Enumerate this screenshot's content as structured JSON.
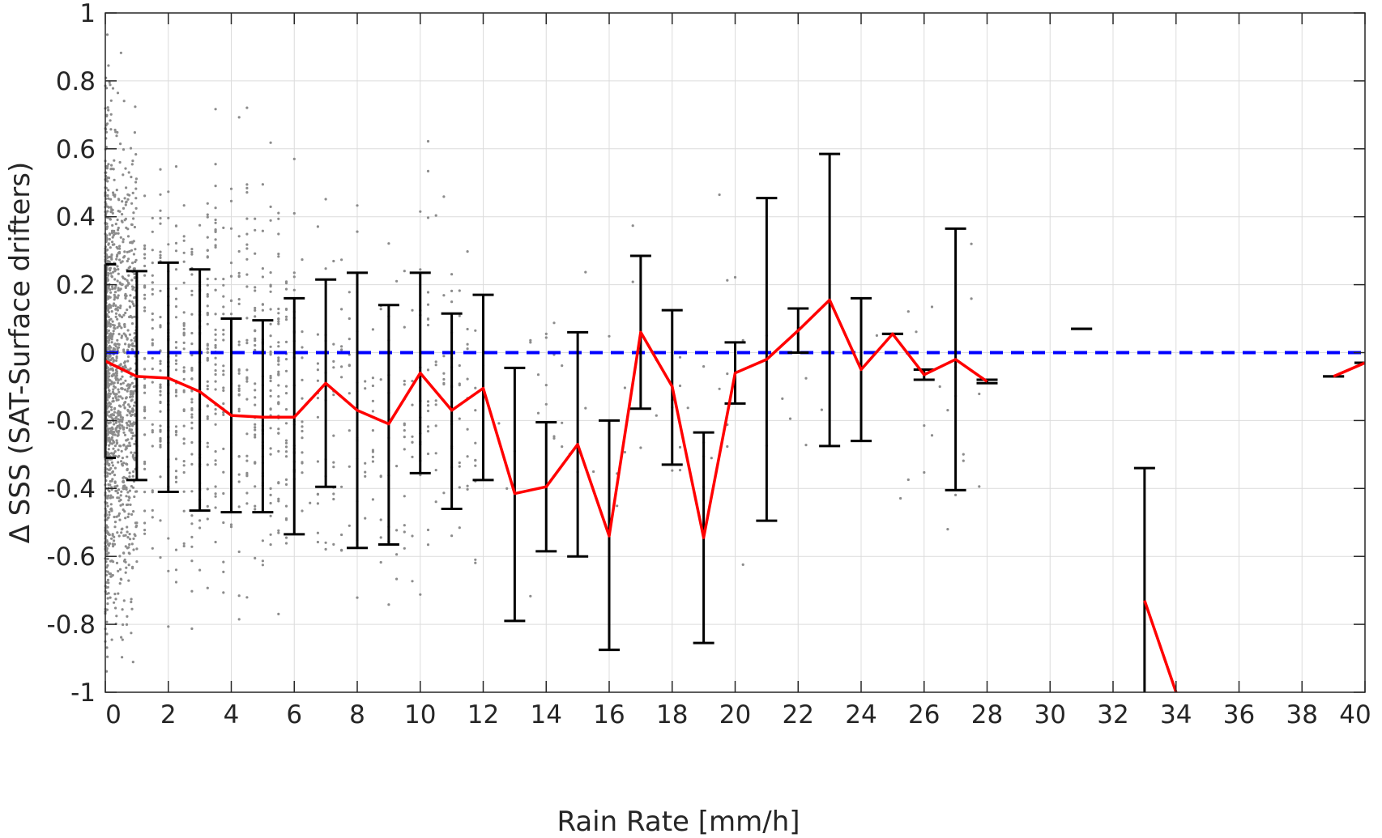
{
  "chart_data": {
    "type": "scatter",
    "xlabel": "Rain Rate [mm/h]",
    "ylabel": "Δ SSS (SAT-Surface drifters)",
    "xlim": [
      0,
      40
    ],
    "ylim": [
      -1,
      1
    ],
    "grid": true,
    "x_ticks": [
      "0",
      "2",
      "4",
      "6",
      "8",
      "10",
      "12",
      "14",
      "16",
      "18",
      "20",
      "22",
      "24",
      "26",
      "28",
      "30",
      "32",
      "34",
      "36",
      "38",
      "40"
    ],
    "y_ticks": [
      "-1",
      "-0.8",
      "-0.6",
      "-0.4",
      "-0.2",
      "0",
      "0.2",
      "0.4",
      "0.6",
      "0.8",
      "1"
    ],
    "colors": {
      "scatter": "#8c8c8c",
      "mean_line": "#ff0000",
      "error_bars": "#000000",
      "zero_line": "#0000ff",
      "grid": "#dcdcdc",
      "axes": "#262626"
    },
    "reference_line": {
      "y": 0,
      "style": "dashed"
    },
    "series": [
      {
        "type": "errorbar",
        "points": [
          {
            "x": 0,
            "y": -0.025,
            "lo": -0.31,
            "hi": 0.26
          },
          {
            "x": 1,
            "y": -0.07,
            "lo": -0.375,
            "hi": 0.24
          },
          {
            "x": 2,
            "y": -0.075,
            "lo": -0.41,
            "hi": 0.265
          },
          {
            "x": 3,
            "y": -0.115,
            "lo": -0.465,
            "hi": 0.245
          },
          {
            "x": 4,
            "y": -0.185,
            "lo": -0.47,
            "hi": 0.1
          },
          {
            "x": 5,
            "y": -0.19,
            "lo": -0.47,
            "hi": 0.095
          },
          {
            "x": 6,
            "y": -0.19,
            "lo": -0.535,
            "hi": 0.16
          },
          {
            "x": 7,
            "y": -0.09,
            "lo": -0.395,
            "hi": 0.215
          },
          {
            "x": 8,
            "y": -0.17,
            "lo": -0.575,
            "hi": 0.235
          },
          {
            "x": 9,
            "y": -0.21,
            "lo": -0.565,
            "hi": 0.14
          },
          {
            "x": 10,
            "y": -0.06,
            "lo": -0.355,
            "hi": 0.235
          },
          {
            "x": 11,
            "y": -0.17,
            "lo": -0.46,
            "hi": 0.115
          },
          {
            "x": 12,
            "y": -0.105,
            "lo": -0.375,
            "hi": 0.17
          },
          {
            "x": 13,
            "y": -0.415,
            "lo": -0.79,
            "hi": -0.045
          },
          {
            "x": 14,
            "y": -0.395,
            "lo": -0.585,
            "hi": -0.205
          },
          {
            "x": 15,
            "y": -0.27,
            "lo": -0.6,
            "hi": 0.06
          },
          {
            "x": 16,
            "y": -0.54,
            "lo": -0.875,
            "hi": -0.2
          },
          {
            "x": 17,
            "y": 0.06,
            "lo": -0.165,
            "hi": 0.285
          },
          {
            "x": 18,
            "y": -0.1,
            "lo": -0.33,
            "hi": 0.125
          },
          {
            "x": 19,
            "y": -0.545,
            "lo": -0.855,
            "hi": -0.235
          },
          {
            "x": 20,
            "y": -0.06,
            "lo": -0.15,
            "hi": 0.03
          },
          {
            "x": 21,
            "y": -0.02,
            "lo": -0.495,
            "hi": 0.455
          },
          {
            "x": 22,
            "y": 0.065,
            "lo": 0.0,
            "hi": 0.13
          },
          {
            "x": 23,
            "y": 0.155,
            "lo": -0.275,
            "hi": 0.585
          },
          {
            "x": 24,
            "y": -0.05,
            "lo": -0.26,
            "hi": 0.16
          },
          {
            "x": 25,
            "y": 0.055,
            "lo": 0.055,
            "hi": 0.055
          },
          {
            "x": 26,
            "y": -0.065,
            "lo": -0.08,
            "hi": -0.05
          },
          {
            "x": 27,
            "y": -0.02,
            "lo": -0.405,
            "hi": 0.365
          },
          {
            "x": 28,
            "y": -0.085,
            "lo": -0.09,
            "hi": -0.08
          },
          {
            "x": 31,
            "y": 0.07,
            "lo": 0.07,
            "hi": 0.07
          },
          {
            "x": 33,
            "y": -0.73,
            "lo": -1.0,
            "hi": -0.34
          },
          {
            "x": 34,
            "y": -1.0,
            "lo": -1.0,
            "hi": -1.0
          },
          {
            "x": 39,
            "y": -0.07,
            "lo": -0.07,
            "hi": -0.07
          },
          {
            "x": 40,
            "y": -0.03,
            "lo": -0.03,
            "hi": -0.03
          }
        ]
      },
      {
        "type": "line",
        "x": [
          0,
          1,
          2,
          3,
          4,
          5,
          6,
          7,
          8,
          9,
          10,
          11,
          12,
          13,
          14,
          15,
          16,
          17,
          18,
          19,
          20,
          21,
          22,
          23,
          24,
          25,
          26,
          27,
          28
        ],
        "y": [
          -0.025,
          -0.07,
          -0.075,
          -0.115,
          -0.185,
          -0.19,
          -0.19,
          -0.09,
          -0.17,
          -0.21,
          -0.06,
          -0.17,
          -0.105,
          -0.415,
          -0.395,
          -0.27,
          -0.54,
          0.06,
          -0.1,
          -0.545,
          -0.06,
          -0.02,
          0.065,
          0.155,
          -0.05,
          0.055,
          -0.065,
          -0.02,
          -0.085
        ]
      },
      {
        "type": "line",
        "x": [
          33,
          34
        ],
        "y": [
          -0.73,
          -1.0
        ]
      },
      {
        "type": "line",
        "x": [
          39,
          40
        ],
        "y": [
          -0.07,
          -0.03
        ]
      },
      {
        "type": "scatter",
        "note_clusters": [
          {
            "x_range": [
              0,
              1
            ],
            "y_range": [
              -0.8,
              0.7
            ],
            "density": "high"
          },
          {
            "x_range": [
              1,
              6
            ],
            "y_range": [
              -0.7,
              0.55
            ],
            "density": "medium"
          },
          {
            "x_range": [
              6,
              12
            ],
            "y_range": [
              -0.75,
              0.45
            ],
            "density": "low"
          },
          {
            "x_range": [
              12,
              28
            ],
            "y_range": [
              -0.7,
              0.4
            ],
            "density": "sparse"
          }
        ]
      }
    ]
  }
}
